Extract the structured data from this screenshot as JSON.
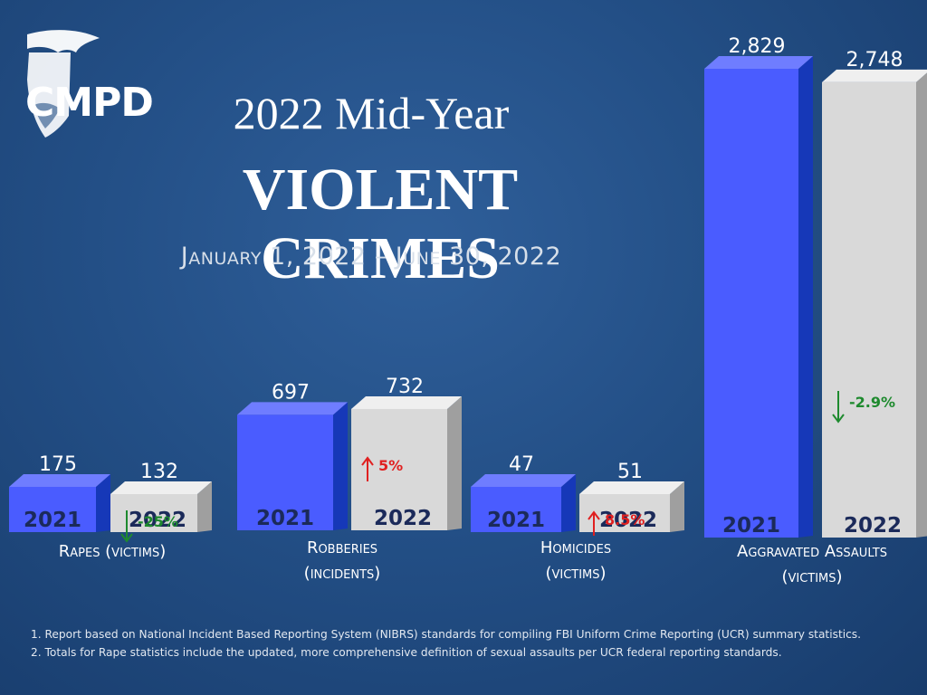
{
  "logo": {
    "text": "CMPD"
  },
  "header": {
    "title_line1": "2022 Mid-Year",
    "title_line2": "VIOLENT CRIMES",
    "date_range": "January 1, 2022 – June 30, 2022"
  },
  "colors": {
    "bar_2021": "#4a5cff",
    "bar_2021_side": "#1638b8",
    "bar_2022": "#d9d9d9",
    "bar_2022_side": "#9f9f9f",
    "increase": "#e02020",
    "decrease": "#1e8a2e"
  },
  "chart_data": {
    "type": "bar",
    "categories": [
      "Rapes (victims)",
      "Robberies (incidents)",
      "Homicides (victims)",
      "Aggravated Assaults (victims)"
    ],
    "category_labels": [
      [
        "Rapes (victims)"
      ],
      [
        "Robberies",
        "(incidents)"
      ],
      [
        "Homicides",
        "(victims)"
      ],
      [
        "Aggravated Assaults",
        "(victims)"
      ]
    ],
    "series": [
      {
        "name": "2021",
        "values": [
          175,
          697,
          47,
          2829
        ],
        "value_labels": [
          "175",
          "697",
          "47",
          "2,829"
        ]
      },
      {
        "name": "2022",
        "values": [
          132,
          732,
          51,
          2748
        ],
        "value_labels": [
          "132",
          "732",
          "51",
          "2,748"
        ]
      }
    ],
    "changes": [
      {
        "text": "-25%",
        "direction": "down"
      },
      {
        "text": "5%",
        "direction": "up"
      },
      {
        "text": "8.5%",
        "direction": "up"
      },
      {
        "text": "-2.9%",
        "direction": "down"
      }
    ]
  },
  "footnotes": [
    "1. Report based on National Incident Based Reporting System (NIBRS) standards for compiling FBI Uniform Crime Reporting (UCR) summary statistics.",
    "2. Totals for Rape statistics include the updated, more comprehensive definition of sexual assaults per UCR federal reporting standards."
  ]
}
